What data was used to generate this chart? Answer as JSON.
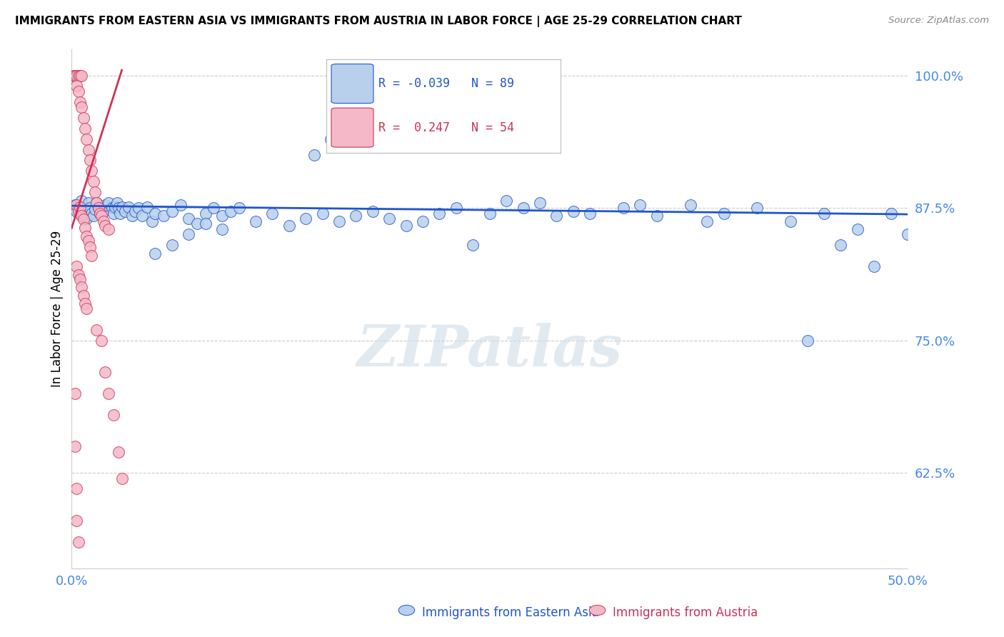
{
  "title": "IMMIGRANTS FROM EASTERN ASIA VS IMMIGRANTS FROM AUSTRIA IN LABOR FORCE | AGE 25-29 CORRELATION CHART",
  "source": "Source: ZipAtlas.com",
  "ylabel": "In Labor Force | Age 25-29",
  "watermark": "ZIPatlas",
  "legend_blue_R": "-0.039",
  "legend_blue_N": "89",
  "legend_pink_R": "0.247",
  "legend_pink_N": "54",
  "legend_label_blue": "Immigrants from Eastern Asia",
  "legend_label_pink": "Immigrants from Austria",
  "xlim": [
    0.0,
    0.5
  ],
  "ylim": [
    0.535,
    1.025
  ],
  "blue_color": "#b8d0eb",
  "blue_line_color": "#2255cc",
  "pink_color": "#f4b8c8",
  "pink_line_color": "#cc3355",
  "tick_color": "#4488ee",
  "grid_color": "#cccccc",
  "blue_scatter_x": [
    0.002,
    0.003,
    0.004,
    0.005,
    0.006,
    0.007,
    0.008,
    0.009,
    0.01,
    0.011,
    0.012,
    0.013,
    0.014,
    0.015,
    0.016,
    0.017,
    0.018,
    0.019,
    0.02,
    0.022,
    0.024,
    0.025,
    0.026,
    0.027,
    0.028,
    0.029,
    0.03,
    0.032,
    0.034,
    0.036,
    0.038,
    0.04,
    0.042,
    0.045,
    0.048,
    0.05,
    0.055,
    0.06,
    0.065,
    0.07,
    0.075,
    0.08,
    0.085,
    0.09,
    0.095,
    0.1,
    0.11,
    0.12,
    0.13,
    0.14,
    0.15,
    0.16,
    0.17,
    0.18,
    0.19,
    0.2,
    0.21,
    0.22,
    0.23,
    0.25,
    0.27,
    0.29,
    0.31,
    0.33,
    0.35,
    0.37,
    0.39,
    0.41,
    0.43,
    0.45,
    0.47,
    0.49,
    0.5,
    0.48,
    0.46,
    0.44,
    0.34,
    0.38,
    0.26,
    0.28,
    0.3,
    0.24,
    0.145,
    0.155,
    0.05,
    0.06,
    0.07,
    0.08,
    0.09
  ],
  "blue_scatter_y": [
    0.878,
    0.872,
    0.876,
    0.87,
    0.882,
    0.868,
    0.875,
    0.865,
    0.88,
    0.875,
    0.87,
    0.868,
    0.874,
    0.88,
    0.875,
    0.87,
    0.876,
    0.872,
    0.878,
    0.88,
    0.875,
    0.87,
    0.876,
    0.88,
    0.875,
    0.87,
    0.876,
    0.872,
    0.876,
    0.868,
    0.872,
    0.875,
    0.868,
    0.876,
    0.862,
    0.87,
    0.868,
    0.872,
    0.878,
    0.865,
    0.86,
    0.87,
    0.875,
    0.868,
    0.872,
    0.875,
    0.862,
    0.87,
    0.858,
    0.865,
    0.87,
    0.862,
    0.868,
    0.872,
    0.865,
    0.858,
    0.862,
    0.87,
    0.875,
    0.87,
    0.875,
    0.868,
    0.87,
    0.875,
    0.868,
    0.878,
    0.87,
    0.875,
    0.862,
    0.87,
    0.855,
    0.87,
    0.85,
    0.82,
    0.84,
    0.75,
    0.878,
    0.862,
    0.882,
    0.88,
    0.872,
    0.84,
    0.925,
    0.94,
    0.832,
    0.84,
    0.85,
    0.86,
    0.855
  ],
  "pink_scatter_x": [
    0.001,
    0.002,
    0.003,
    0.004,
    0.005,
    0.006,
    0.003,
    0.004,
    0.005,
    0.006,
    0.007,
    0.008,
    0.009,
    0.01,
    0.011,
    0.012,
    0.013,
    0.014,
    0.015,
    0.016,
    0.017,
    0.018,
    0.019,
    0.02,
    0.022,
    0.003,
    0.004,
    0.005,
    0.006,
    0.007,
    0.008,
    0.009,
    0.01,
    0.011,
    0.012,
    0.003,
    0.004,
    0.005,
    0.006,
    0.007,
    0.008,
    0.009,
    0.015,
    0.018,
    0.02,
    0.022,
    0.025,
    0.028,
    0.03,
    0.002,
    0.002,
    0.003,
    0.003,
    0.004
  ],
  "pink_scatter_y": [
    1.0,
    1.0,
    1.0,
    1.0,
    1.0,
    1.0,
    0.99,
    0.985,
    0.975,
    0.97,
    0.96,
    0.95,
    0.94,
    0.93,
    0.92,
    0.91,
    0.9,
    0.89,
    0.88,
    0.875,
    0.87,
    0.868,
    0.862,
    0.858,
    0.855,
    0.878,
    0.872,
    0.876,
    0.868,
    0.864,
    0.856,
    0.848,
    0.844,
    0.838,
    0.83,
    0.82,
    0.812,
    0.808,
    0.8,
    0.792,
    0.785,
    0.78,
    0.76,
    0.75,
    0.72,
    0.7,
    0.68,
    0.645,
    0.62,
    0.7,
    0.65,
    0.61,
    0.58,
    0.56
  ],
  "blue_line_x": [
    0.0,
    0.5
  ],
  "blue_line_y": [
    0.877,
    0.869
  ],
  "pink_line_x": [
    0.0,
    0.03
  ],
  "pink_line_y": [
    0.856,
    1.005
  ],
  "y_tick_vals": [
    0.625,
    0.75,
    0.875,
    1.0
  ],
  "y_tick_labels": [
    "62.5%",
    "75.0%",
    "87.5%",
    "100.0%"
  ],
  "x_tick_vals": [
    0.0,
    0.5
  ],
  "x_tick_labels": [
    "0.0%",
    "50.0%"
  ]
}
